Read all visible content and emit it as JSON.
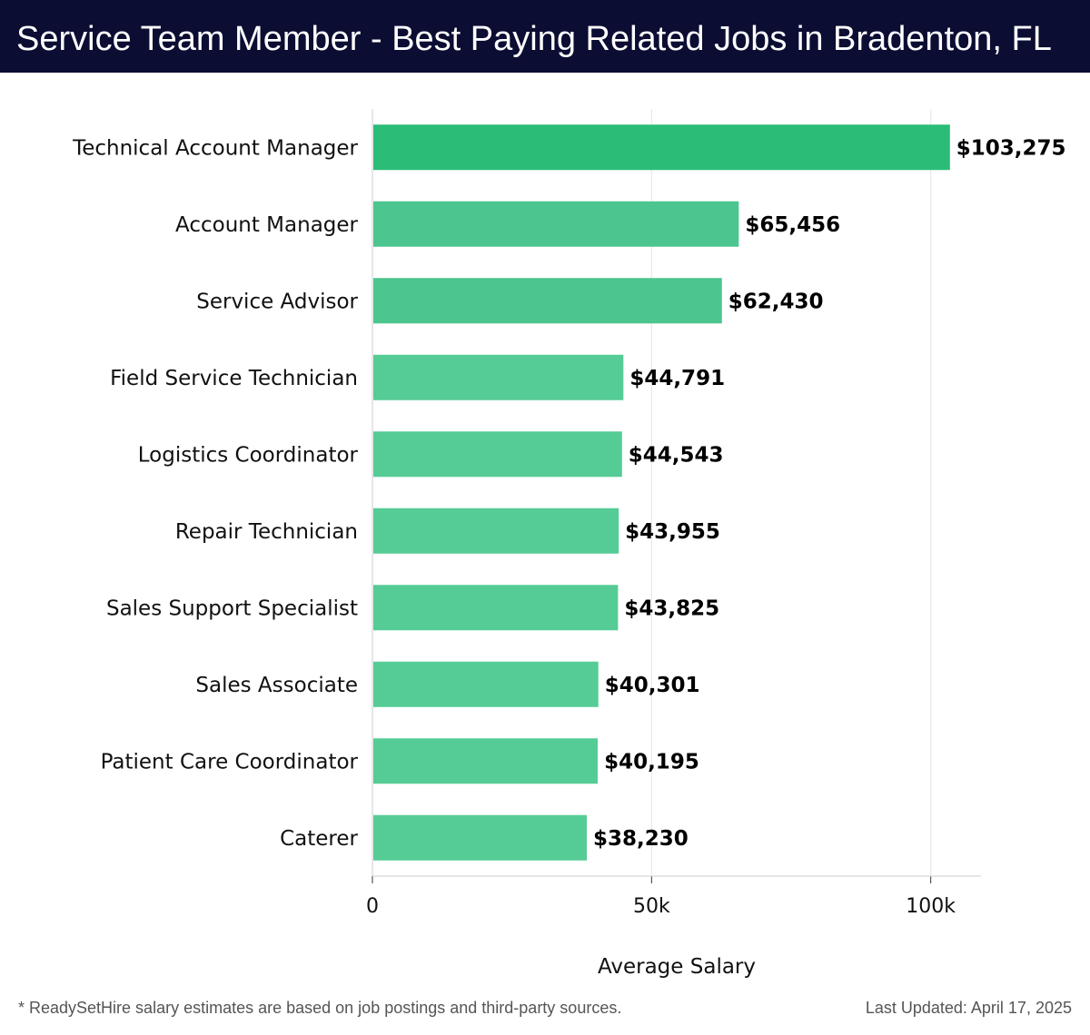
{
  "header": {
    "title": "Service Team Member - Best Paying Related Jobs in Bradenton, FL"
  },
  "chart_data": {
    "type": "bar",
    "orientation": "horizontal",
    "categories": [
      "Technical Account Manager",
      "Account Manager",
      "Service Advisor",
      "Field Service Technician",
      "Logistics Coordinator",
      "Repair Technician",
      "Sales Support Specialist",
      "Sales Associate",
      "Patient Care Coordinator",
      "Caterer"
    ],
    "values": [
      103275,
      65456,
      62430,
      44791,
      44543,
      43955,
      43825,
      40301,
      40195,
      38230
    ],
    "value_labels": [
      "$103,275",
      "$65,456",
      "$62,430",
      "$44,791",
      "$44,543",
      "$43,955",
      "$43,825",
      "$40,301",
      "$40,195",
      "$38,230"
    ],
    "xlabel": "Average Salary",
    "ylabel": "",
    "xlim": [
      0,
      109000
    ],
    "xticks": [
      0,
      50000,
      100000
    ],
    "xtick_labels": [
      "0",
      "50k",
      "100k"
    ],
    "grid": "vertical",
    "colors": {
      "highlight": "#2bbd77",
      "bar": "#55cc95",
      "bar_second": "#4cc68e",
      "grid": "#e5e5e5",
      "axis": "#cccccc"
    }
  },
  "footer": {
    "note": "* ReadySetHire salary estimates are based on job postings and third-party sources.",
    "updated": "Last Updated: April 17, 2025"
  }
}
